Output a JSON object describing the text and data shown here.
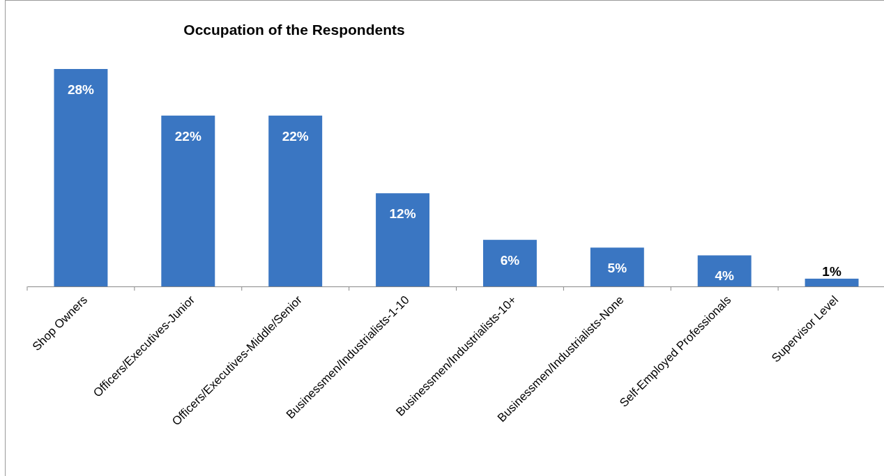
{
  "chart_data": {
    "type": "bar",
    "title": "Occupation of the Respondents",
    "categories": [
      "Shop Owners",
      "Officers/Executives-Junior",
      "Officers/Executives-Middle/Senior",
      "Businessmen/Industrialists-1-10",
      "Businessmen/Industrialists-10+",
      "Businessmen/Industrialists-None",
      "Self-Employed Professionals",
      "Supervisor Level"
    ],
    "values": [
      28,
      22,
      22,
      12,
      6,
      5,
      4,
      1
    ],
    "value_labels": [
      "28%",
      "22%",
      "22%",
      "12%",
      "6%",
      "5%",
      "4%",
      "1%"
    ],
    "color": "#3a76c2"
  }
}
